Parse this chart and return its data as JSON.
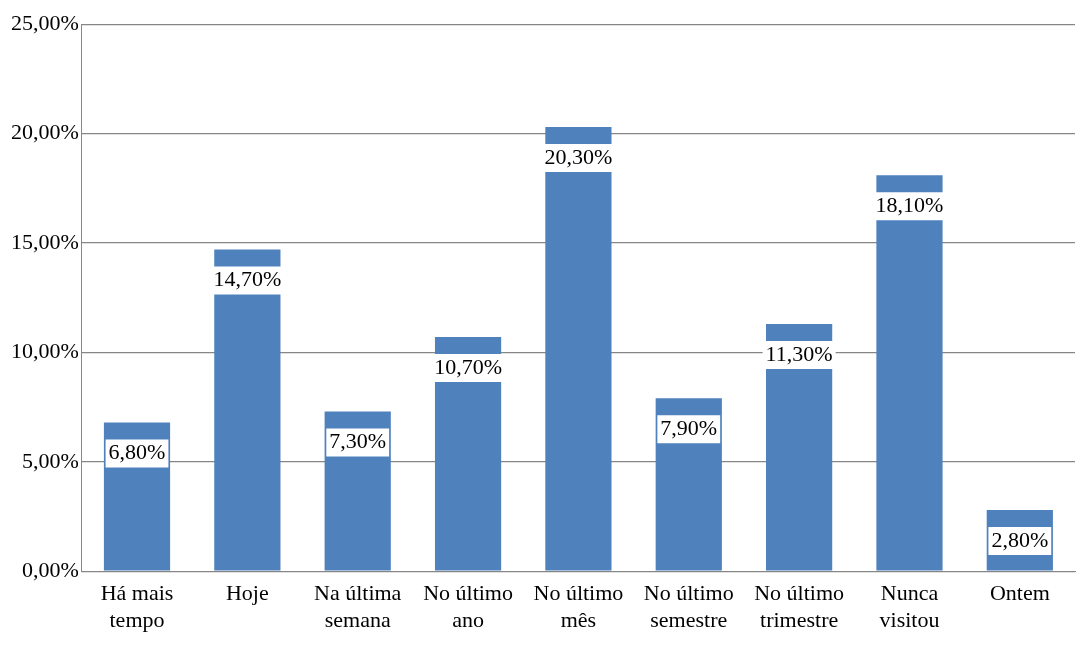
{
  "chart_data": {
    "type": "bar",
    "categories": [
      "Há mais tempo",
      "Hoje",
      "Na última semana",
      "No último ano",
      "No último mês",
      "No último semestre",
      "No último trimestre",
      "Nunca visitou",
      "Ontem"
    ],
    "values": [
      6.8,
      14.7,
      7.3,
      10.7,
      20.3,
      7.9,
      11.3,
      18.1,
      2.8
    ],
    "value_labels": [
      "6,80%",
      "14,70%",
      "7,30%",
      "10,70%",
      "20,30%",
      "7,90%",
      "11,30%",
      "18,10%",
      "2,80%"
    ],
    "color": "#4f81bd",
    "ylim": [
      0,
      25
    ],
    "yticks": [
      {
        "value": 0,
        "label": "0,00%"
      },
      {
        "value": 5,
        "label": "5,00%"
      },
      {
        "value": 10,
        "label": "10,00%"
      },
      {
        "value": 15,
        "label": "15,00%"
      },
      {
        "value": 20,
        "label": "20,00%"
      },
      {
        "value": 25,
        "label": "25,00%"
      }
    ],
    "grid": "y",
    "legend": false
  }
}
